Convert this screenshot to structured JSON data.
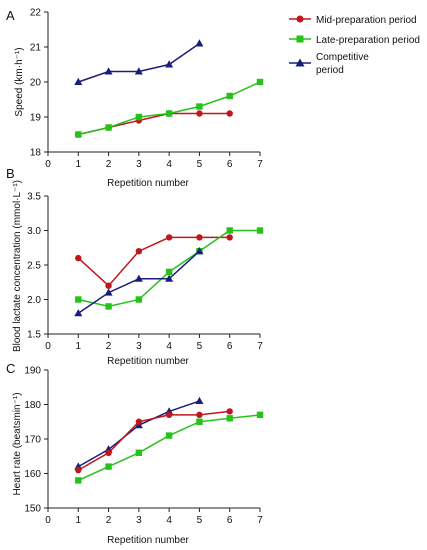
{
  "chart_data": [
    {
      "type": "line",
      "panel_label": "A",
      "xlabel": "Repetition number",
      "ylabel": "Speed (km·h⁻¹)",
      "xlim": [
        0,
        7
      ],
      "ylim": [
        18,
        22
      ],
      "xticks": [
        0,
        1,
        2,
        3,
        4,
        5,
        6,
        7
      ],
      "yticks": [
        18,
        19,
        20,
        21,
        22
      ],
      "grid": false,
      "legend": "top-right",
      "series": [
        {
          "name": "Mid-preparation period",
          "color": "#c0171d",
          "marker": "circle",
          "x": [
            1,
            2,
            3,
            4,
            5,
            6
          ],
          "y": [
            18.5,
            18.7,
            18.9,
            19.1,
            19.1,
            19.1
          ]
        },
        {
          "name": "Late-preparation period",
          "color": "#25c21a",
          "marker": "square",
          "x": [
            1,
            2,
            3,
            4,
            5,
            6,
            7
          ],
          "y": [
            18.5,
            18.7,
            19.0,
            19.1,
            19.3,
            19.6,
            20.0
          ]
        },
        {
          "name": "Competitive period",
          "color": "#1a1e7a",
          "marker": "triangle",
          "x": [
            1,
            2,
            3,
            4,
            5
          ],
          "y": [
            20.0,
            20.3,
            20.3,
            20.5,
            21.1
          ]
        }
      ]
    },
    {
      "type": "line",
      "panel_label": "B",
      "xlabel": "Repetition number",
      "ylabel": "Blood lactate concentration (mmol·L⁻¹)",
      "xlim": [
        0,
        7
      ],
      "ylim": [
        1.5,
        3.5
      ],
      "xticks": [
        0,
        1,
        2,
        3,
        4,
        5,
        6,
        7
      ],
      "yticks": [
        1.5,
        2.0,
        2.5,
        3.0,
        3.5
      ],
      "grid": false,
      "series": [
        {
          "color": "#c0171d",
          "marker": "circle",
          "x": [
            1,
            2,
            3,
            4,
            5,
            6
          ],
          "y": [
            2.6,
            2.2,
            2.7,
            2.9,
            2.9,
            2.9
          ]
        },
        {
          "color": "#25c21a",
          "marker": "square",
          "x": [
            1,
            2,
            3,
            4,
            5,
            6,
            7
          ],
          "y": [
            2.0,
            1.9,
            2.0,
            2.4,
            2.7,
            3.0,
            3.0
          ]
        },
        {
          "color": "#1a1e7a",
          "marker": "triangle",
          "x": [
            1,
            2,
            3,
            4,
            5
          ],
          "y": [
            1.8,
            2.1,
            2.3,
            2.3,
            2.7
          ]
        }
      ]
    },
    {
      "type": "line",
      "panel_label": "C",
      "xlabel": "Repetition number",
      "ylabel": "Heart rate (beatsmin⁻¹)",
      "xlim": [
        0,
        7
      ],
      "ylim": [
        150,
        190
      ],
      "xticks": [
        0,
        1,
        2,
        3,
        4,
        5,
        6,
        7
      ],
      "yticks": [
        150,
        160,
        170,
        180,
        190
      ],
      "grid": false,
      "series": [
        {
          "color": "#1a1e7a",
          "marker": "triangle",
          "x": [
            1,
            2,
            3,
            4,
            5
          ],
          "y": [
            162,
            167,
            174,
            178,
            181
          ]
        },
        {
          "color": "#c0171d",
          "marker": "circle",
          "x": [
            1,
            2,
            3,
            4,
            5,
            6
          ],
          "y": [
            161,
            166,
            175,
            177,
            177,
            178
          ]
        },
        {
          "color": "#25c21a",
          "marker": "square",
          "x": [
            1,
            2,
            3,
            4,
            5,
            6,
            7
          ],
          "y": [
            158,
            162,
            166,
            171,
            175,
            176,
            177
          ]
        }
      ]
    }
  ]
}
